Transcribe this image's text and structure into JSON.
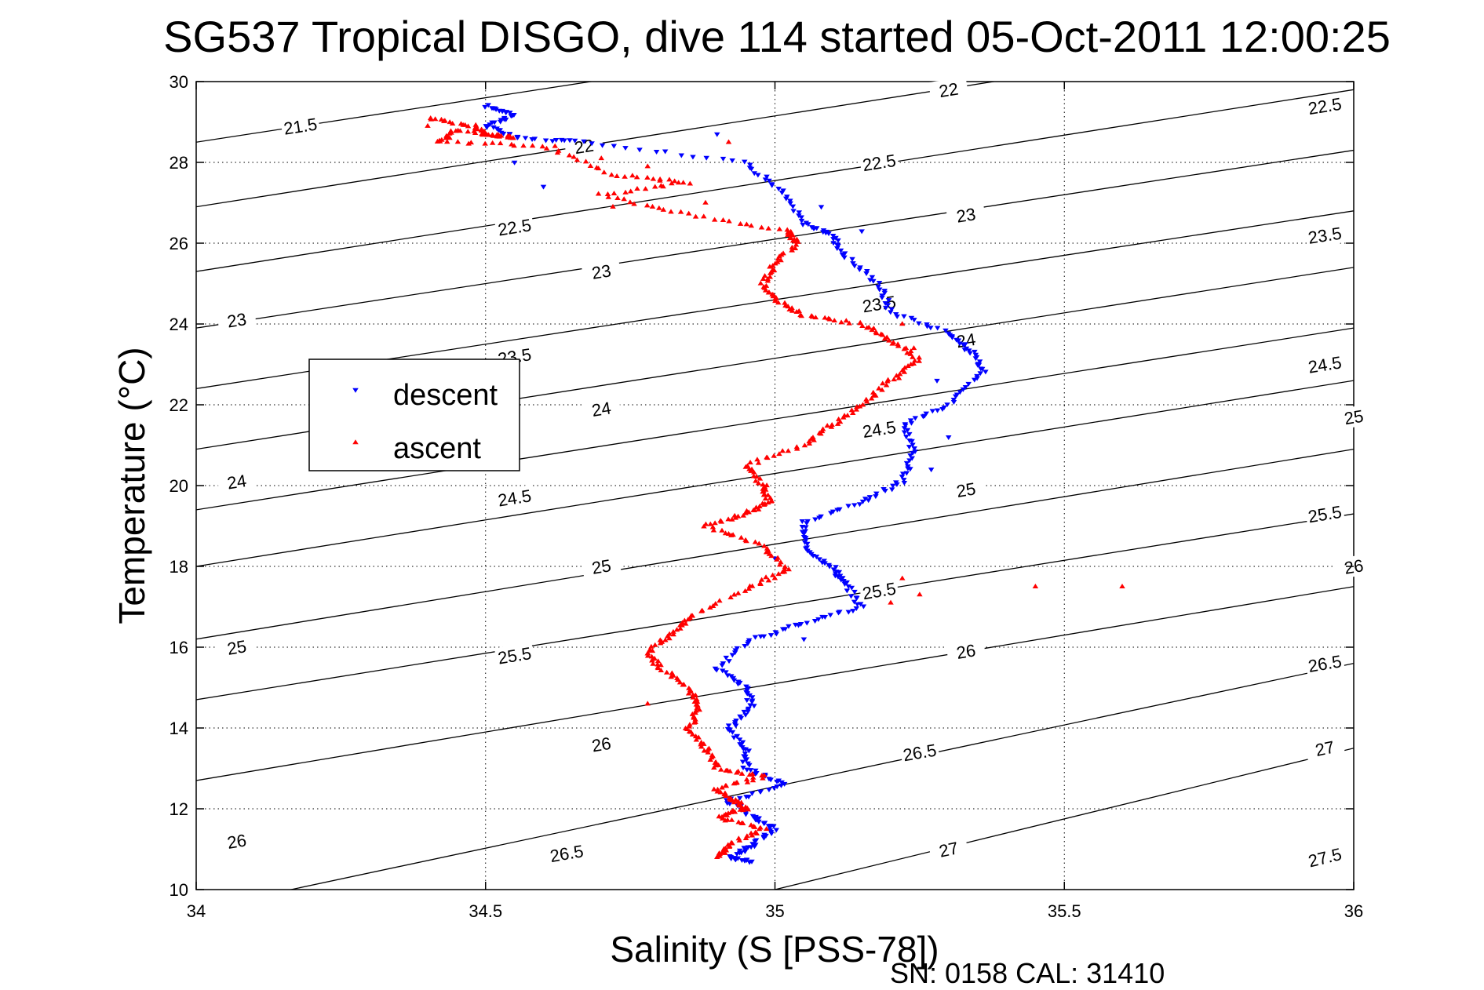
{
  "title": "SG537 Tropical DISGO, dive 114 started 05-Oct-2011 12:00:25",
  "footer": "SN: 0158  CAL: 31410",
  "chart_data": {
    "type": "scatter",
    "xlabel": "Salinity (S [PSS-78])",
    "ylabel": "Temperature (°C)",
    "xlim": [
      34,
      36
    ],
    "ylim": [
      10,
      30
    ],
    "xticks": [
      34,
      34.5,
      35,
      35.5,
      36
    ],
    "yticks": [
      10,
      12,
      14,
      16,
      18,
      20,
      22,
      24,
      26,
      28,
      30
    ],
    "grid": true,
    "legend_position": "upper-left",
    "contours": [
      {
        "label": "21.5",
        "t_at_s34": 28.5,
        "t_at_s36": 32.9,
        "label_at": [
          [
            34.18,
            28.9
          ]
        ]
      },
      {
        "label": "22",
        "t_at_s34": 26.9,
        "t_at_s36": 31.4,
        "label_at": [
          [
            34.67,
            28.4
          ],
          [
            35.3,
            29.8
          ]
        ]
      },
      {
        "label": "22.5",
        "t_at_s34": 25.3,
        "t_at_s36": 29.8,
        "label_at": [
          [
            34.55,
            26.4
          ],
          [
            35.18,
            28.0
          ],
          [
            35.95,
            29.4
          ]
        ]
      },
      {
        "label": "23",
        "t_at_s34": 23.9,
        "t_at_s36": 28.3,
        "label_at": [
          [
            34.07,
            24.1
          ],
          [
            34.7,
            25.3
          ],
          [
            35.33,
            26.7
          ]
        ]
      },
      {
        "label": "23.5",
        "t_at_s34": 22.4,
        "t_at_s36": 26.8,
        "label_at": [
          [
            34.55,
            23.2
          ],
          [
            35.18,
            24.5
          ],
          [
            35.95,
            26.2
          ]
        ]
      },
      {
        "label": "24",
        "t_at_s34": 20.9,
        "t_at_s36": 25.4,
        "label_at": [
          [
            34.07,
            20.1
          ],
          [
            34.7,
            21.9
          ],
          [
            35.33,
            23.6
          ]
        ]
      },
      {
        "label": "24.5",
        "t_at_s34": 19.4,
        "t_at_s36": 23.9,
        "label_at": [
          [
            34.55,
            19.7
          ],
          [
            35.18,
            21.4
          ],
          [
            35.95,
            23.0
          ]
        ]
      },
      {
        "label": "25",
        "t_at_s34": 18.0,
        "t_at_s36": 22.6,
        "label_at": [
          [
            34.07,
            16.0
          ],
          [
            34.7,
            18.0
          ],
          [
            35.33,
            19.9
          ],
          [
            36.0,
            21.7
          ]
        ]
      },
      {
        "label": "25.5",
        "t_at_s34": 16.2,
        "t_at_s36": 20.9,
        "label_at": [
          [
            34.55,
            15.8
          ],
          [
            35.18,
            17.4
          ],
          [
            35.95,
            19.3
          ]
        ]
      },
      {
        "label": "26",
        "t_at_s34": 14.7,
        "t_at_s36": 19.3,
        "label_at": [
          [
            34.07,
            11.2
          ],
          [
            34.7,
            13.6
          ],
          [
            35.33,
            15.9
          ],
          [
            36.0,
            18.0
          ]
        ]
      },
      {
        "label": "26.5",
        "t_at_s34": 12.7,
        "t_at_s36": 17.5,
        "label_at": [
          [
            34.64,
            10.9
          ],
          [
            35.25,
            13.4
          ],
          [
            35.95,
            15.6
          ]
        ]
      },
      {
        "label": "27",
        "t_at_s34": 9.5,
        "t_at_s36": 15.6,
        "label_at": [
          [
            35.3,
            11.0
          ],
          [
            35.95,
            13.5
          ]
        ]
      },
      {
        "label": "27.5",
        "t_at_s34": 6.5,
        "t_at_s36": 13.5,
        "label_at": [
          [
            35.95,
            10.8
          ]
        ]
      }
    ],
    "series": [
      {
        "name": "descent",
        "color": "#0000ff",
        "marker": "triangle-down",
        "path": [
          [
            34.5,
            29.4
          ],
          [
            34.55,
            29.2
          ],
          [
            34.5,
            28.9
          ],
          [
            34.56,
            28.6
          ],
          [
            34.68,
            28.5
          ],
          [
            34.95,
            28.0
          ],
          [
            35.01,
            27.3
          ],
          [
            35.05,
            26.5
          ],
          [
            35.1,
            26.2
          ],
          [
            35.12,
            25.7
          ],
          [
            35.18,
            25.0
          ],
          [
            35.2,
            24.3
          ],
          [
            35.3,
            23.8
          ],
          [
            35.34,
            23.3
          ],
          [
            35.36,
            22.8
          ],
          [
            35.3,
            22.0
          ],
          [
            35.22,
            21.5
          ],
          [
            35.24,
            20.8
          ],
          [
            35.22,
            20.1
          ],
          [
            35.15,
            19.6
          ],
          [
            35.05,
            19.1
          ],
          [
            35.05,
            18.5
          ],
          [
            35.1,
            18.0
          ],
          [
            35.12,
            17.6
          ],
          [
            35.15,
            17.0
          ],
          [
            35.05,
            16.6
          ],
          [
            34.96,
            16.2
          ],
          [
            34.9,
            15.5
          ],
          [
            34.95,
            15.0
          ],
          [
            34.96,
            14.5
          ],
          [
            34.92,
            14.0
          ],
          [
            34.95,
            13.5
          ],
          [
            34.95,
            13.0
          ],
          [
            35.02,
            12.6
          ],
          [
            34.92,
            12.2
          ],
          [
            34.96,
            11.8
          ],
          [
            35.0,
            11.5
          ],
          [
            34.96,
            11.1
          ],
          [
            34.92,
            10.8
          ],
          [
            34.96,
            10.7
          ]
        ],
        "points": [
          [
            34.55,
            28.0
          ],
          [
            34.6,
            27.4
          ],
          [
            34.9,
            28.7
          ],
          [
            35.15,
            26.3
          ],
          [
            35.08,
            26.9
          ],
          [
            35.28,
            22.6
          ],
          [
            35.3,
            21.2
          ],
          [
            35.27,
            20.4
          ],
          [
            35.0,
            18.2
          ],
          [
            35.05,
            16.2
          ]
        ]
      },
      {
        "name": "ascent",
        "color": "#ff0000",
        "marker": "triangle-up",
        "path": [
          [
            34.4,
            29.1
          ],
          [
            34.48,
            28.9
          ],
          [
            34.5,
            28.7
          ],
          [
            34.55,
            28.6
          ],
          [
            34.45,
            28.8
          ],
          [
            34.42,
            28.5
          ],
          [
            34.6,
            28.4
          ],
          [
            34.72,
            27.7
          ],
          [
            34.85,
            27.5
          ],
          [
            34.7,
            27.2
          ],
          [
            34.85,
            26.7
          ],
          [
            35.02,
            26.3
          ],
          [
            35.04,
            26.0
          ],
          [
            35.0,
            25.5
          ],
          [
            34.98,
            25.0
          ],
          [
            35.0,
            24.6
          ],
          [
            35.05,
            24.2
          ],
          [
            35.15,
            24.0
          ],
          [
            35.2,
            23.6
          ],
          [
            35.25,
            23.1
          ],
          [
            35.2,
            22.6
          ],
          [
            35.15,
            22.0
          ],
          [
            35.1,
            21.5
          ],
          [
            35.05,
            21.0
          ],
          [
            34.95,
            20.5
          ],
          [
            34.98,
            20.0
          ],
          [
            34.99,
            19.6
          ],
          [
            34.95,
            19.3
          ],
          [
            34.88,
            19.0
          ],
          [
            34.98,
            18.5
          ],
          [
            35.02,
            17.9
          ],
          [
            34.96,
            17.5
          ],
          [
            34.86,
            16.8
          ],
          [
            34.82,
            16.3
          ],
          [
            34.78,
            15.9
          ],
          [
            34.8,
            15.5
          ],
          [
            34.85,
            15.0
          ],
          [
            34.87,
            14.5
          ],
          [
            34.85,
            14.0
          ],
          [
            34.88,
            13.5
          ],
          [
            34.9,
            13.0
          ],
          [
            34.98,
            12.8
          ],
          [
            34.9,
            12.5
          ],
          [
            34.93,
            12.2
          ],
          [
            34.95,
            12.0
          ],
          [
            34.9,
            11.8
          ],
          [
            34.98,
            11.5
          ],
          [
            34.92,
            11.1
          ],
          [
            34.9,
            10.8
          ]
        ],
        "points": [
          [
            34.4,
            28.9
          ],
          [
            34.7,
            28.1
          ],
          [
            34.62,
            28.4
          ],
          [
            34.78,
            27.9
          ],
          [
            34.92,
            28.5
          ],
          [
            34.72,
            26.9
          ],
          [
            34.88,
            27.0
          ],
          [
            35.22,
            24.0
          ],
          [
            35.24,
            23.4
          ],
          [
            35.45,
            17.5
          ],
          [
            35.6,
            17.5
          ],
          [
            35.25,
            17.3
          ],
          [
            35.22,
            17.7
          ],
          [
            35.2,
            17.1
          ],
          [
            34.78,
            14.6
          ],
          [
            34.84,
            16.6
          ],
          [
            34.92,
            18.8
          ]
        ]
      }
    ]
  }
}
